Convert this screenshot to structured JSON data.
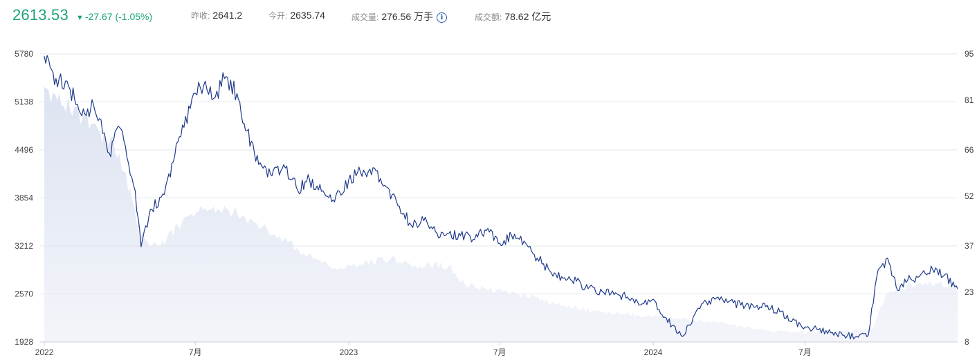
{
  "quote": {
    "price": "2613.53",
    "change_arrow": "▼",
    "change": "-27.67 (-1.05%)",
    "prev_close_label": "昨收:",
    "prev_close": "2641.2",
    "open_label": "今开:",
    "open": "2635.74",
    "volume_label": "成交量:",
    "volume": "276.56 万手",
    "info_icon": "i",
    "turnover_label": "成交额:",
    "turnover": "78.62 亿元"
  },
  "colors": {
    "up_down_green": "#1aa37a",
    "line": "#1f3a8a",
    "volume_fill": "#dde3f1",
    "grid": "#e3e6ee"
  },
  "chart_data": {
    "type": "line",
    "x_ticks": [
      "2022",
      "7月",
      "2023",
      "7月",
      "2024",
      "7月"
    ],
    "y_left_ticks": [
      5780,
      5138,
      4496,
      3854,
      3212,
      2570,
      1928
    ],
    "y_right_ticks": [
      95,
      81,
      66,
      52,
      37,
      23,
      8
    ],
    "ylim_left": [
      1928,
      5780
    ],
    "ylim_right": [
      8,
      95
    ],
    "grid": true,
    "series": [
      {
        "role": "price",
        "style": "line",
        "x": [
          "2022-01-01",
          "2022-01-15",
          "2022-02-01",
          "2022-02-15",
          "2022-03-01",
          "2022-03-10",
          "2022-03-20",
          "2022-04-01",
          "2022-04-10",
          "2022-04-20",
          "2022-04-27",
          "2022-05-10",
          "2022-05-25",
          "2022-06-10",
          "2022-06-25",
          "2022-07-05",
          "2022-07-15",
          "2022-07-25",
          "2022-08-05",
          "2022-08-20",
          "2022-09-01",
          "2022-09-15",
          "2022-10-01",
          "2022-10-15",
          "2022-11-01",
          "2022-11-15",
          "2022-12-01",
          "2022-12-15",
          "2023-01-01",
          "2023-01-15",
          "2023-02-01",
          "2023-02-15",
          "2023-03-01",
          "2023-03-15",
          "2023-04-01",
          "2023-04-15",
          "2023-05-01",
          "2023-05-15",
          "2023-06-01",
          "2023-06-15",
          "2023-07-01",
          "2023-07-15",
          "2023-08-01",
          "2023-08-15",
          "2023-09-01",
          "2023-09-15",
          "2023-10-01",
          "2023-10-15",
          "2023-11-01",
          "2023-11-15",
          "2023-12-01",
          "2023-12-15",
          "2024-01-01",
          "2024-01-15",
          "2024-02-05",
          "2024-02-20",
          "2024-03-01",
          "2024-03-15",
          "2024-04-01",
          "2024-04-15",
          "2024-05-01",
          "2024-05-15",
          "2024-06-01",
          "2024-06-15",
          "2024-07-01",
          "2024-07-15",
          "2024-08-01",
          "2024-08-15",
          "2024-09-01",
          "2024-09-15",
          "2024-09-25",
          "2024-10-08",
          "2024-10-20",
          "2024-11-01",
          "2024-11-15",
          "2024-12-01",
          "2024-12-15",
          "2024-12-31"
        ],
        "values": [
          5750,
          5450,
          5300,
          4950,
          5100,
          4900,
          4450,
          4800,
          4400,
          3950,
          3200,
          3700,
          3900,
          4600,
          5050,
          5400,
          5300,
          5200,
          5450,
          5250,
          4750,
          4300,
          4150,
          4300,
          3950,
          4100,
          3950,
          3800,
          4100,
          4200,
          4250,
          4000,
          3750,
          3520,
          3550,
          3400,
          3380,
          3350,
          3300,
          3420,
          3250,
          3360,
          3250,
          3050,
          2850,
          2780,
          2740,
          2640,
          2600,
          2560,
          2530,
          2420,
          2500,
          2260,
          2000,
          2300,
          2450,
          2500,
          2470,
          2420,
          2390,
          2400,
          2330,
          2200,
          2130,
          2100,
          2050,
          2020,
          2000,
          2020,
          2800,
          3050,
          2620,
          2750,
          2800,
          2900,
          2820,
          2640
        ]
      },
      {
        "role": "volume",
        "style": "area",
        "x": [
          "2022-01-01",
          "2022-02-01",
          "2022-03-01",
          "2022-04-01",
          "2022-04-27",
          "2022-05-20",
          "2022-06-15",
          "2022-07-10",
          "2022-08-10",
          "2022-09-10",
          "2022-10-20",
          "2022-11-20",
          "2022-12-20",
          "2023-01-20",
          "2023-02-20",
          "2023-03-20",
          "2023-05-01",
          "2023-05-15",
          "2023-06-15",
          "2023-08-01",
          "2023-09-15",
          "2023-11-01",
          "2023-12-15",
          "2024-02-01",
          "2024-03-15",
          "2024-05-01",
          "2024-06-15",
          "2024-08-01",
          "2024-09-20",
          "2024-10-08",
          "2024-11-15",
          "2024-12-31"
        ],
        "values": [
          85,
          78,
          74,
          65,
          40,
          37,
          44,
          48,
          48,
          44,
          38,
          33,
          30,
          32,
          33,
          31,
          31,
          26,
          24,
          22,
          19,
          17,
          16,
          15,
          14,
          12,
          11,
          11,
          12,
          23,
          26,
          25
        ]
      }
    ]
  }
}
